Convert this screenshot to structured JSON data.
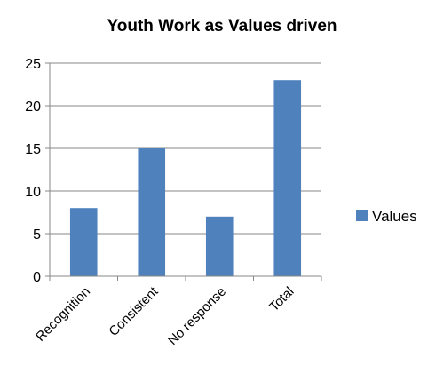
{
  "chart_data": {
    "type": "bar",
    "title": "Youth Work as Values driven",
    "categories": [
      "Recognition",
      "Consistent",
      "No response",
      "Total"
    ],
    "series": [
      {
        "name": "Values",
        "values": [
          8,
          15,
          7,
          23
        ],
        "color": "#4f81bd"
      }
    ],
    "ylim": [
      0,
      25
    ],
    "yticks": [
      0,
      5,
      10,
      15,
      20,
      25
    ],
    "grid": true,
    "legend": "right",
    "xlabel": "",
    "ylabel": ""
  }
}
